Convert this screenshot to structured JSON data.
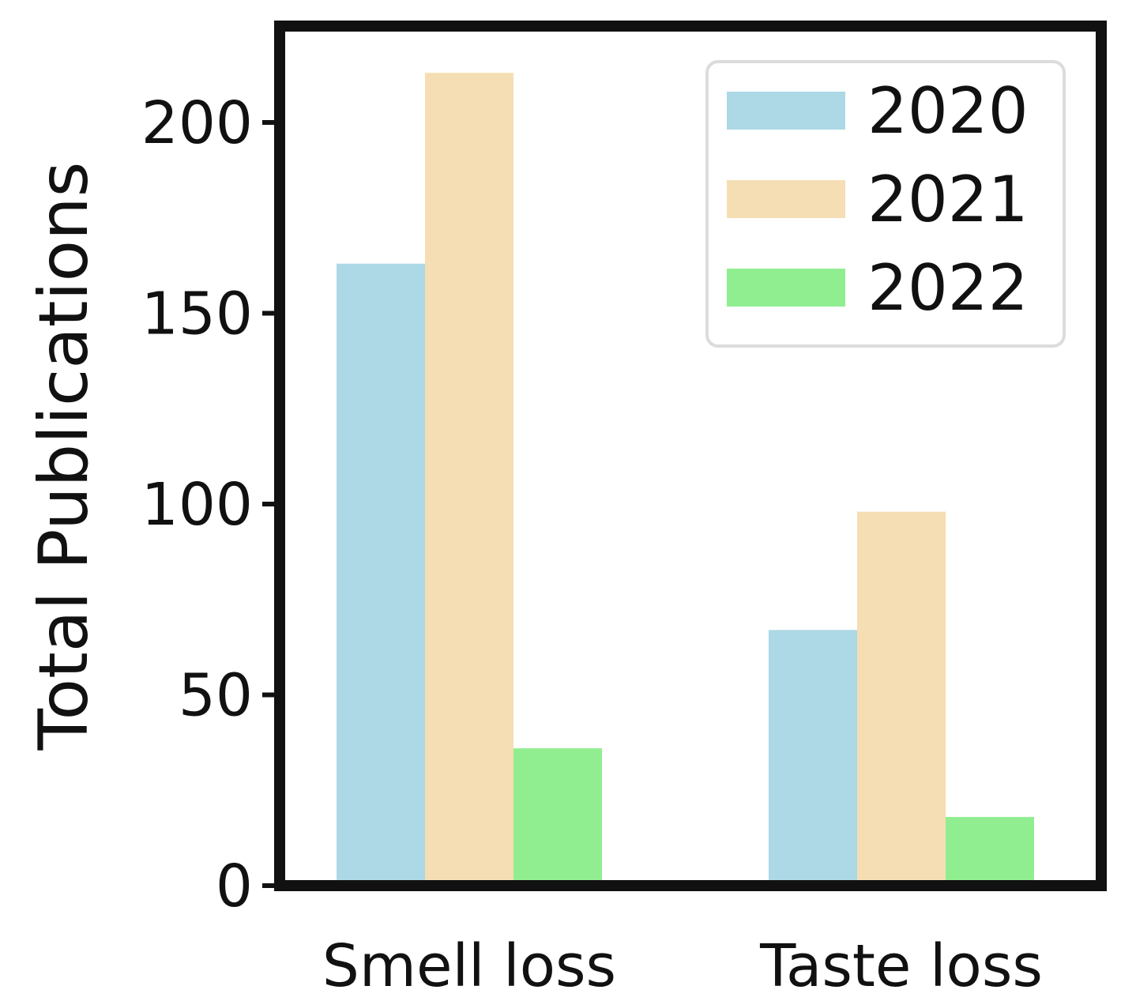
{
  "chart_data": {
    "type": "bar",
    "title": "",
    "xlabel": "",
    "ylabel": "Total Publications",
    "categories": [
      "Smell loss",
      "Taste loss"
    ],
    "series": [
      {
        "name": "2020",
        "color": "#add8e6",
        "values": [
          163,
          67
        ]
      },
      {
        "name": "2021",
        "color": "#f5deb3",
        "values": [
          213,
          98
        ]
      },
      {
        "name": "2022",
        "color": "#90ee90",
        "values": [
          36,
          18
        ]
      }
    ],
    "ylim": [
      0,
      223
    ],
    "yticks": [
      0,
      50,
      100,
      150,
      200
    ],
    "grid": false,
    "legend_position": "top-right"
  }
}
